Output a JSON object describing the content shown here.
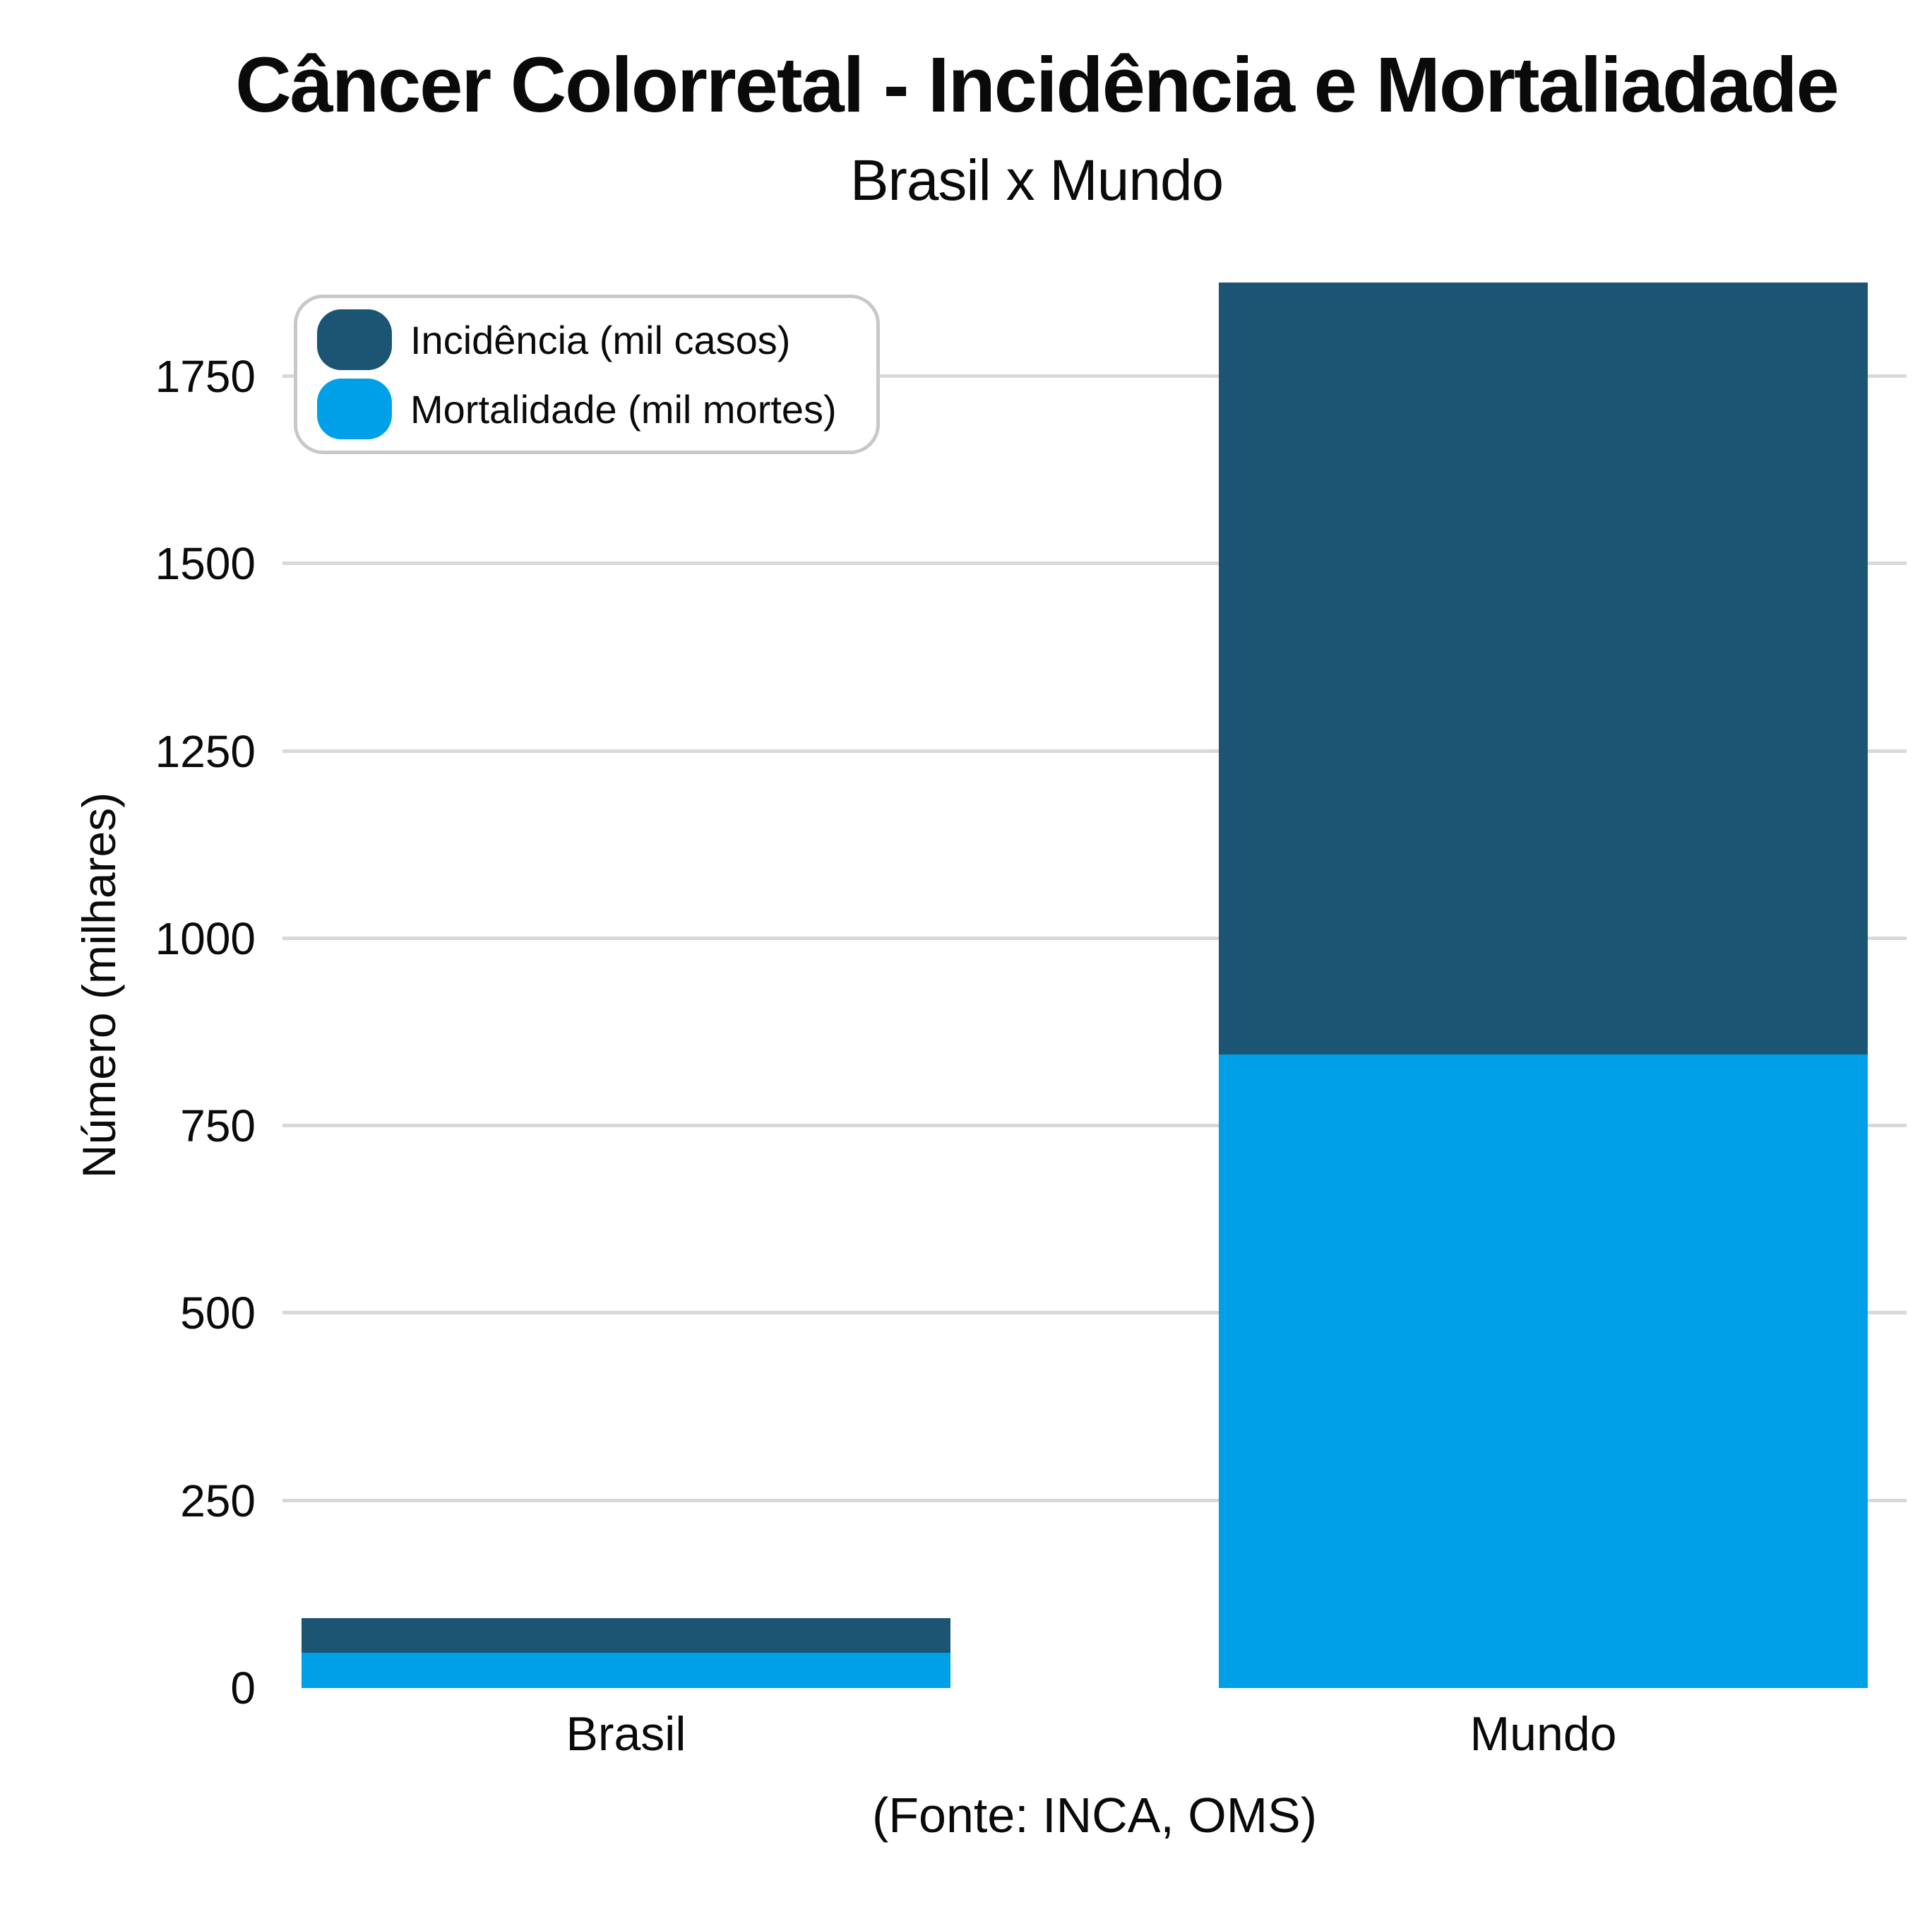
{
  "header": {
    "title": "Câncer Colorretal - Incidência e Mortaliadade",
    "subtitle": "Brasil x Mundo"
  },
  "y_axis": {
    "label": "Número (milhares)",
    "ticks": [
      0,
      250,
      500,
      750,
      1000,
      1250,
      1500,
      1750
    ],
    "max": 1880
  },
  "legend": [
    {
      "label": "Incidência (mil casos)",
      "color": "#1B5573"
    },
    {
      "label": "Mortalidade (mil mortes)",
      "color": "#00A0E8"
    }
  ],
  "footer": {
    "source_note": "(Fonte: INCA, OMS)"
  },
  "colors": {
    "incidencia": "#1B5573",
    "mortalidade": "#00A0E8",
    "gridline": "#d8d8d8",
    "legend_border": "#c8c8c8"
  },
  "chart_data": {
    "type": "bar",
    "barmode": "overlay",
    "title": "Câncer Colorretal - Incidência e Mortaliadade",
    "subtitle": "Brasil x Mundo",
    "annotation": "(Fonte: INCA, OMS)",
    "categories": [
      "Brasil",
      "Mundo"
    ],
    "series": [
      {
        "name": "Incidência (mil casos)",
        "color": "#1B5573",
        "values": [
          93,
          1875
        ]
      },
      {
        "name": "Mortalidade (mil mortes)",
        "color": "#00A0E8",
        "values": [
          47,
          845
        ]
      }
    ],
    "xlabel": "",
    "ylabel": "Número (milhares)",
    "ylim": [
      0,
      1880
    ],
    "yticks": [
      0,
      250,
      500,
      750,
      1000,
      1250,
      1500,
      1750
    ],
    "grid": "horizontal",
    "legend_position": "top-left"
  }
}
